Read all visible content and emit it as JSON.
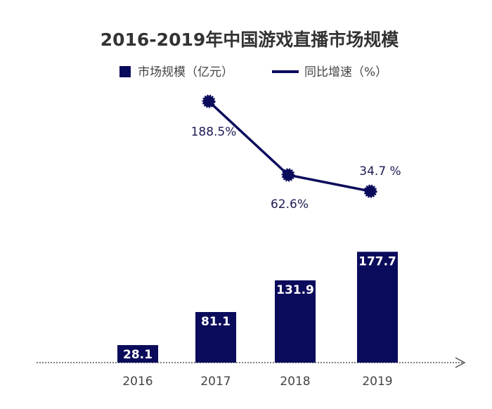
{
  "chart_data": {
    "type": "bar",
    "title": "2016-2019年中国游戏直播市场规模",
    "categories": [
      "2016",
      "2017",
      "2018",
      "2019"
    ],
    "series": [
      {
        "name": "市场规模（亿元）",
        "type": "bar",
        "color": "#0b0b5c",
        "values": [
          28.1,
          81.1,
          131.9,
          177.7
        ]
      },
      {
        "name": "同比增速（%）",
        "type": "line",
        "axis": "y2",
        "color": "#0b0b5c",
        "values": [
          null,
          188.5,
          62.6,
          34.7
        ],
        "value_labels": [
          null,
          "188.5%",
          "62.6%",
          "34.7 %"
        ]
      }
    ],
    "ylim": [
      0,
      178
    ],
    "y2lim": [
      0,
      220
    ],
    "grid": false,
    "legend": "top"
  }
}
